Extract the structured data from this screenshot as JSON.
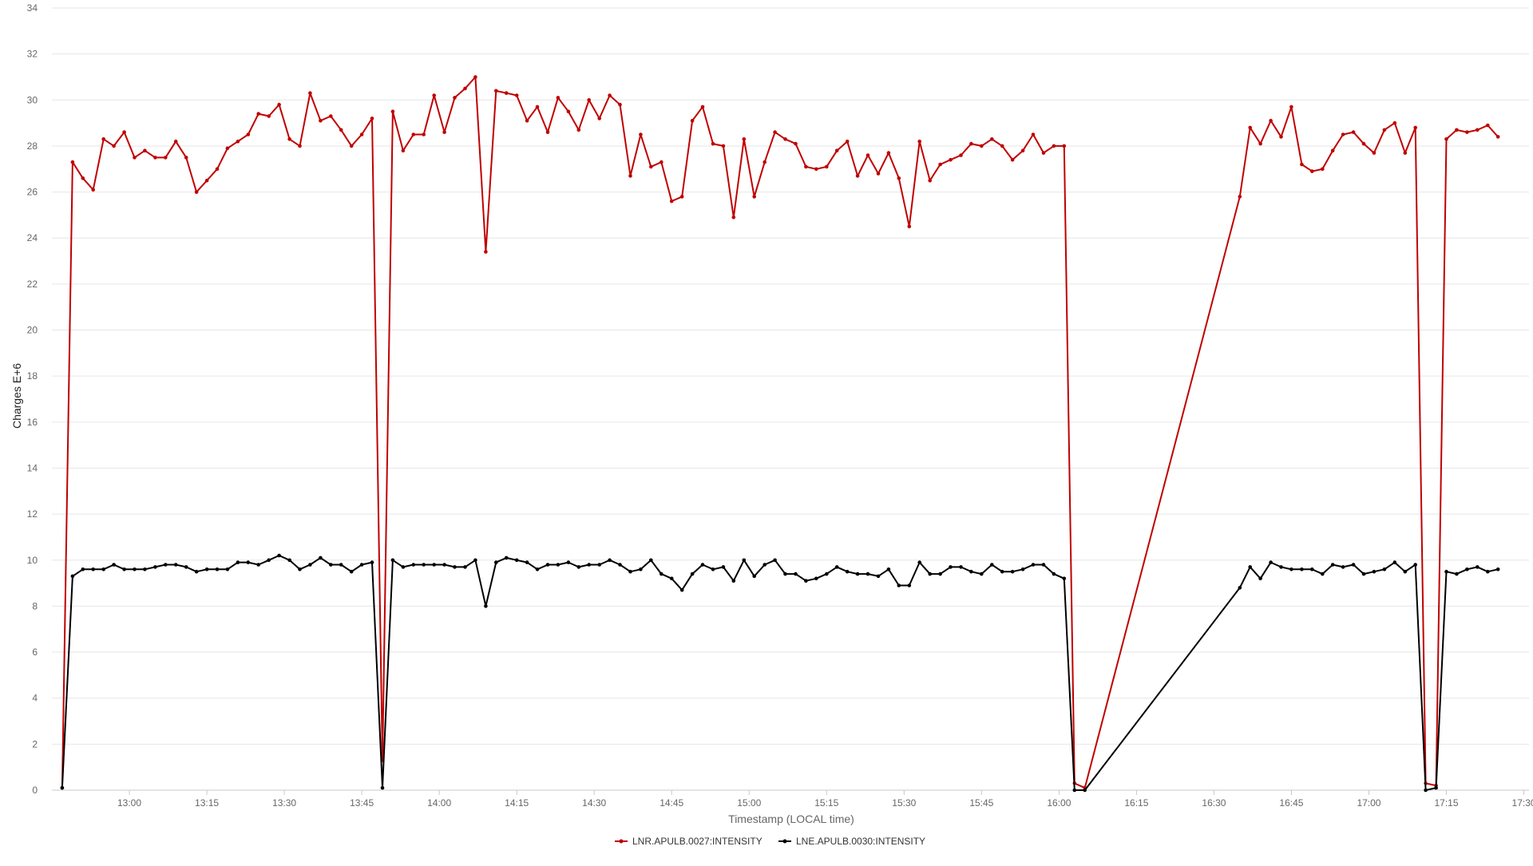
{
  "chart_data": {
    "type": "line",
    "xlabel": "Timestamp (LOCAL time)",
    "ylabel": "Charges E+6",
    "ylim": [
      0,
      34
    ],
    "yticks": [
      0,
      2,
      4,
      6,
      8,
      10,
      12,
      14,
      16,
      18,
      20,
      22,
      24,
      26,
      28,
      30,
      32,
      34
    ],
    "xlim": [
      "12:45",
      "17:31"
    ],
    "xticks": [
      "13:00",
      "13:15",
      "13:30",
      "13:45",
      "14:00",
      "14:15",
      "14:30",
      "14:45",
      "15:00",
      "15:15",
      "15:30",
      "15:45",
      "16:00",
      "16:15",
      "16:30",
      "16:45",
      "17:00",
      "17:15",
      "17:30"
    ],
    "grid": true,
    "legend_position": "bottom",
    "series": [
      {
        "name": "LNR.APULB.0027:INTENSITY",
        "color": "#c00000",
        "points": [
          [
            "12:47",
            0.1
          ],
          [
            "12:49",
            27.3
          ],
          [
            "12:51",
            26.6
          ],
          [
            "12:53",
            26.1
          ],
          [
            "12:55",
            28.3
          ],
          [
            "12:57",
            28.0
          ],
          [
            "12:59",
            28.6
          ],
          [
            "13:01",
            27.5
          ],
          [
            "13:03",
            27.8
          ],
          [
            "13:05",
            27.5
          ],
          [
            "13:07",
            27.5
          ],
          [
            "13:09",
            28.2
          ],
          [
            "13:11",
            27.5
          ],
          [
            "13:13",
            26.0
          ],
          [
            "13:15",
            26.5
          ],
          [
            "13:17",
            27.0
          ],
          [
            "13:19",
            27.9
          ],
          [
            "13:21",
            28.2
          ],
          [
            "13:23",
            28.5
          ],
          [
            "13:25",
            29.4
          ],
          [
            "13:27",
            29.3
          ],
          [
            "13:29",
            29.8
          ],
          [
            "13:31",
            28.3
          ],
          [
            "13:33",
            28.0
          ],
          [
            "13:35",
            30.3
          ],
          [
            "13:37",
            29.1
          ],
          [
            "13:39",
            29.3
          ],
          [
            "13:41",
            28.7
          ],
          [
            "13:43",
            28.0
          ],
          [
            "13:45",
            28.5
          ],
          [
            "13:47",
            29.2
          ],
          [
            "13:49",
            1.3
          ],
          [
            "13:51",
            29.5
          ],
          [
            "13:53",
            27.8
          ],
          [
            "13:55",
            28.5
          ],
          [
            "13:57",
            28.5
          ],
          [
            "13:59",
            30.2
          ],
          [
            "14:01",
            28.6
          ],
          [
            "14:03",
            30.1
          ],
          [
            "14:05",
            30.5
          ],
          [
            "14:07",
            31.0
          ],
          [
            "14:09",
            23.4
          ],
          [
            "14:11",
            30.4
          ],
          [
            "14:13",
            30.3
          ],
          [
            "14:15",
            30.2
          ],
          [
            "14:17",
            29.1
          ],
          [
            "14:19",
            29.7
          ],
          [
            "14:21",
            28.6
          ],
          [
            "14:23",
            30.1
          ],
          [
            "14:25",
            29.5
          ],
          [
            "14:27",
            28.7
          ],
          [
            "14:29",
            30.0
          ],
          [
            "14:31",
            29.2
          ],
          [
            "14:33",
            30.2
          ],
          [
            "14:35",
            29.8
          ],
          [
            "14:37",
            26.7
          ],
          [
            "14:39",
            28.5
          ],
          [
            "14:41",
            27.1
          ],
          [
            "14:43",
            27.3
          ],
          [
            "14:45",
            25.6
          ],
          [
            "14:47",
            25.8
          ],
          [
            "14:49",
            29.1
          ],
          [
            "14:51",
            29.7
          ],
          [
            "14:53",
            28.1
          ],
          [
            "14:55",
            28.0
          ],
          [
            "14:57",
            24.9
          ],
          [
            "14:59",
            28.3
          ],
          [
            "15:01",
            25.8
          ],
          [
            "15:03",
            27.3
          ],
          [
            "15:05",
            28.6
          ],
          [
            "15:07",
            28.3
          ],
          [
            "15:09",
            28.1
          ],
          [
            "15:11",
            27.1
          ],
          [
            "15:13",
            27.0
          ],
          [
            "15:15",
            27.1
          ],
          [
            "15:17",
            27.8
          ],
          [
            "15:19",
            28.2
          ],
          [
            "15:21",
            26.7
          ],
          [
            "15:23",
            27.6
          ],
          [
            "15:25",
            26.8
          ],
          [
            "15:27",
            27.7
          ],
          [
            "15:29",
            26.6
          ],
          [
            "15:31",
            24.5
          ],
          [
            "15:33",
            28.2
          ],
          [
            "15:35",
            26.5
          ],
          [
            "15:37",
            27.2
          ],
          [
            "15:39",
            27.4
          ],
          [
            "15:41",
            27.6
          ],
          [
            "15:43",
            28.1
          ],
          [
            "15:45",
            28.0
          ],
          [
            "15:47",
            28.3
          ],
          [
            "15:49",
            28.0
          ],
          [
            "15:51",
            27.4
          ],
          [
            "15:53",
            27.8
          ],
          [
            "15:55",
            28.5
          ],
          [
            "15:57",
            27.7
          ],
          [
            "15:59",
            28.0
          ],
          [
            "16:01",
            28.0
          ],
          [
            "16:03",
            0.3
          ],
          [
            "16:05",
            0.1
          ],
          [
            "16:35",
            25.8
          ],
          [
            "16:37",
            28.8
          ],
          [
            "16:39",
            28.1
          ],
          [
            "16:41",
            29.1
          ],
          [
            "16:43",
            28.4
          ],
          [
            "16:45",
            29.7
          ],
          [
            "16:47",
            27.2
          ],
          [
            "16:49",
            26.9
          ],
          [
            "16:51",
            27.0
          ],
          [
            "16:53",
            27.8
          ],
          [
            "16:55",
            28.5
          ],
          [
            "16:57",
            28.6
          ],
          [
            "16:59",
            28.1
          ],
          [
            "17:01",
            27.7
          ],
          [
            "17:03",
            28.7
          ],
          [
            "17:05",
            29.0
          ],
          [
            "17:07",
            27.7
          ],
          [
            "17:09",
            28.8
          ],
          [
            "17:11",
            0.3
          ],
          [
            "17:13",
            0.2
          ],
          [
            "17:15",
            28.3
          ],
          [
            "17:17",
            28.7
          ],
          [
            "17:19",
            28.6
          ],
          [
            "17:21",
            28.7
          ],
          [
            "17:23",
            28.9
          ],
          [
            "17:25",
            28.4
          ]
        ]
      },
      {
        "name": "LNE.APULB.0030:INTENSITY",
        "color": "#000000",
        "points": [
          [
            "12:47",
            0.1
          ],
          [
            "12:49",
            9.3
          ],
          [
            "12:51",
            9.6
          ],
          [
            "12:53",
            9.6
          ],
          [
            "12:55",
            9.6
          ],
          [
            "12:57",
            9.8
          ],
          [
            "12:59",
            9.6
          ],
          [
            "13:01",
            9.6
          ],
          [
            "13:03",
            9.6
          ],
          [
            "13:05",
            9.7
          ],
          [
            "13:07",
            9.8
          ],
          [
            "13:09",
            9.8
          ],
          [
            "13:11",
            9.7
          ],
          [
            "13:13",
            9.5
          ],
          [
            "13:15",
            9.6
          ],
          [
            "13:17",
            9.6
          ],
          [
            "13:19",
            9.6
          ],
          [
            "13:21",
            9.9
          ],
          [
            "13:23",
            9.9
          ],
          [
            "13:25",
            9.8
          ],
          [
            "13:27",
            10.0
          ],
          [
            "13:29",
            10.2
          ],
          [
            "13:31",
            10.0
          ],
          [
            "13:33",
            9.6
          ],
          [
            "13:35",
            9.8
          ],
          [
            "13:37",
            10.1
          ],
          [
            "13:39",
            9.8
          ],
          [
            "13:41",
            9.8
          ],
          [
            "13:43",
            9.5
          ],
          [
            "13:45",
            9.8
          ],
          [
            "13:47",
            9.9
          ],
          [
            "13:49",
            0.1
          ],
          [
            "13:51",
            10.0
          ],
          [
            "13:53",
            9.7
          ],
          [
            "13:55",
            9.8
          ],
          [
            "13:57",
            9.8
          ],
          [
            "13:59",
            9.8
          ],
          [
            "14:01",
            9.8
          ],
          [
            "14:03",
            9.7
          ],
          [
            "14:05",
            9.7
          ],
          [
            "14:07",
            10.0
          ],
          [
            "14:09",
            8.0
          ],
          [
            "14:11",
            9.9
          ],
          [
            "14:13",
            10.1
          ],
          [
            "14:15",
            10.0
          ],
          [
            "14:17",
            9.9
          ],
          [
            "14:19",
            9.6
          ],
          [
            "14:21",
            9.8
          ],
          [
            "14:23",
            9.8
          ],
          [
            "14:25",
            9.9
          ],
          [
            "14:27",
            9.7
          ],
          [
            "14:29",
            9.8
          ],
          [
            "14:31",
            9.8
          ],
          [
            "14:33",
            10.0
          ],
          [
            "14:35",
            9.8
          ],
          [
            "14:37",
            9.5
          ],
          [
            "14:39",
            9.6
          ],
          [
            "14:41",
            10.0
          ],
          [
            "14:43",
            9.4
          ],
          [
            "14:45",
            9.2
          ],
          [
            "14:47",
            8.7
          ],
          [
            "14:49",
            9.4
          ],
          [
            "14:51",
            9.8
          ],
          [
            "14:53",
            9.6
          ],
          [
            "14:55",
            9.7
          ],
          [
            "14:57",
            9.1
          ],
          [
            "14:59",
            10.0
          ],
          [
            "15:01",
            9.3
          ],
          [
            "15:03",
            9.8
          ],
          [
            "15:05",
            10.0
          ],
          [
            "15:07",
            9.4
          ],
          [
            "15:09",
            9.4
          ],
          [
            "15:11",
            9.1
          ],
          [
            "15:13",
            9.2
          ],
          [
            "15:15",
            9.4
          ],
          [
            "15:17",
            9.7
          ],
          [
            "15:19",
            9.5
          ],
          [
            "15:21",
            9.4
          ],
          [
            "15:23",
            9.4
          ],
          [
            "15:25",
            9.3
          ],
          [
            "15:27",
            9.6
          ],
          [
            "15:29",
            8.9
          ],
          [
            "15:31",
            8.9
          ],
          [
            "15:33",
            9.9
          ],
          [
            "15:35",
            9.4
          ],
          [
            "15:37",
            9.4
          ],
          [
            "15:39",
            9.7
          ],
          [
            "15:41",
            9.7
          ],
          [
            "15:43",
            9.5
          ],
          [
            "15:45",
            9.4
          ],
          [
            "15:47",
            9.8
          ],
          [
            "15:49",
            9.5
          ],
          [
            "15:51",
            9.5
          ],
          [
            "15:53",
            9.6
          ],
          [
            "15:55",
            9.8
          ],
          [
            "15:57",
            9.8
          ],
          [
            "15:59",
            9.4
          ],
          [
            "16:01",
            9.2
          ],
          [
            "16:03",
            0.0
          ],
          [
            "16:05",
            0.0
          ],
          [
            "16:35",
            8.8
          ],
          [
            "16:37",
            9.7
          ],
          [
            "16:39",
            9.2
          ],
          [
            "16:41",
            9.9
          ],
          [
            "16:43",
            9.7
          ],
          [
            "16:45",
            9.6
          ],
          [
            "16:47",
            9.6
          ],
          [
            "16:49",
            9.6
          ],
          [
            "16:51",
            9.4
          ],
          [
            "16:53",
            9.8
          ],
          [
            "16:55",
            9.7
          ],
          [
            "16:57",
            9.8
          ],
          [
            "16:59",
            9.4
          ],
          [
            "17:01",
            9.5
          ],
          [
            "17:03",
            9.6
          ],
          [
            "17:05",
            9.9
          ],
          [
            "17:07",
            9.5
          ],
          [
            "17:09",
            9.8
          ],
          [
            "17:11",
            0.0
          ],
          [
            "17:13",
            0.1
          ],
          [
            "17:15",
            9.5
          ],
          [
            "17:17",
            9.4
          ],
          [
            "17:19",
            9.6
          ],
          [
            "17:21",
            9.7
          ],
          [
            "17:23",
            9.5
          ],
          [
            "17:25",
            9.6
          ]
        ]
      }
    ]
  }
}
